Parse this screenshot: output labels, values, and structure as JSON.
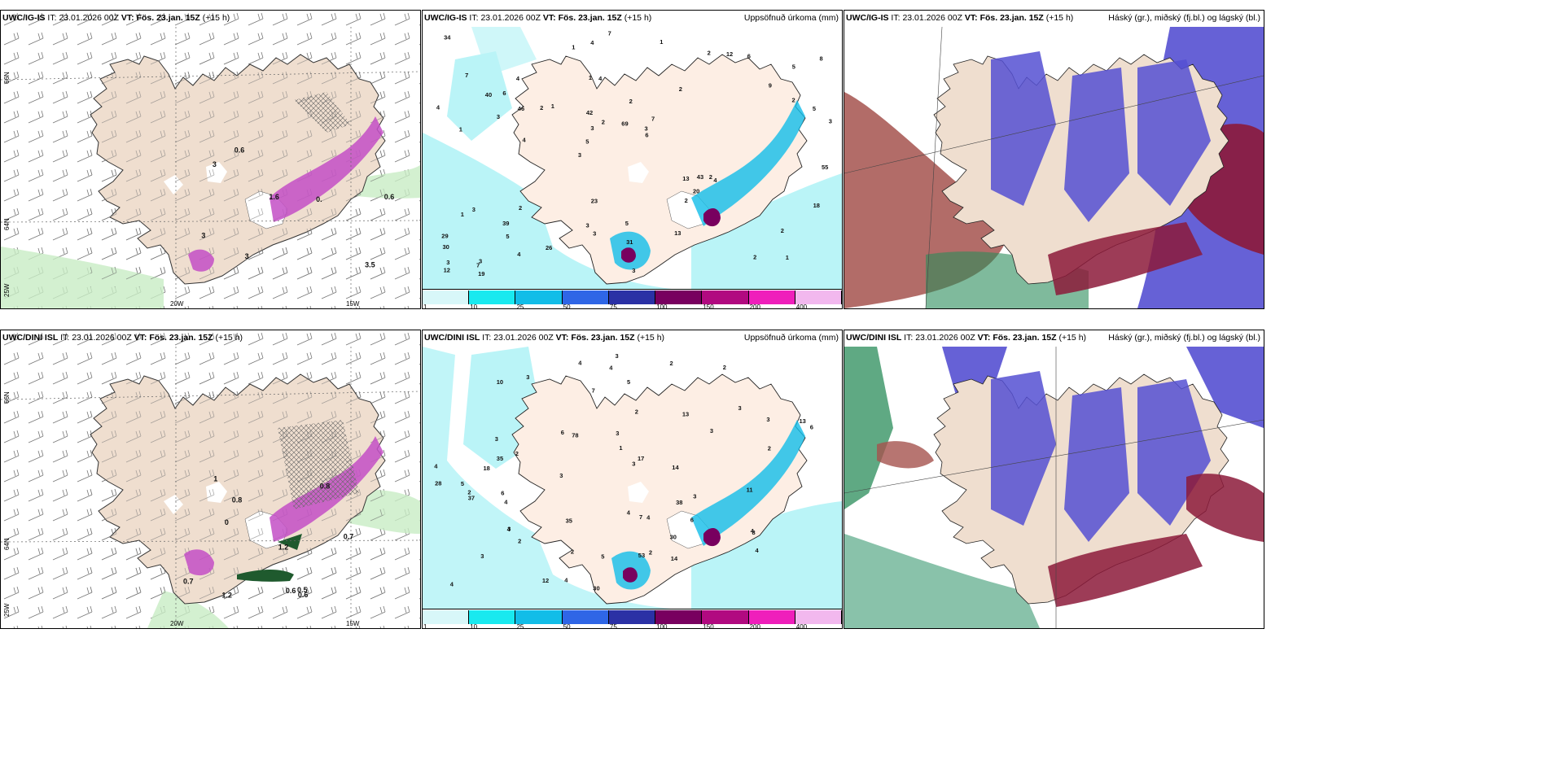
{
  "colorbar": {
    "colors": [
      "#d8f7f9",
      "#19e9ef",
      "#12bde8",
      "#2f66e6",
      "#2b31a5",
      "#78005f",
      "#b10a80",
      "#ef1fbb",
      "#f2b8ee"
    ],
    "ticks": [
      "1",
      "10",
      "25",
      "50",
      "75",
      "100",
      "150",
      "200",
      "400"
    ]
  },
  "colors": {
    "land": "#efdecf",
    "sea": "#ffffff",
    "coast": "#333333",
    "precip_light": "#baf4f7",
    "precip_magenta": "#c34fc6",
    "cloud_high": "#2a8c5a",
    "cloud_mid": "#5550d2",
    "cloud_low": "#8c1a3a"
  },
  "rows": [
    {
      "model": "UWC/IG-IS",
      "it_label": "IT:",
      "it_value": "23.01.2026 00Z",
      "vt_label": "VT:",
      "vt_value": "Fös. 23.jan. 15Z",
      "lead": "(+15 h)",
      "lon_labels": [
        "20W",
        "15W"
      ],
      "lat_labels": [
        "66N",
        "64N",
        "25W"
      ],
      "wind_labels": [
        "0.6",
        "0.6",
        "1.6",
        "3.5",
        "3",
        "3",
        "0.",
        "3"
      ],
      "precip_numbers": [
        "1",
        "1",
        "5",
        "3",
        "2",
        "3",
        "1",
        "2",
        "3",
        "1",
        "30",
        "5",
        "4",
        "7",
        "4",
        "7",
        "4",
        "3",
        "13",
        "2",
        "5",
        "3",
        "3",
        "4",
        "2",
        "2",
        "2",
        "2",
        "2",
        "3",
        "2",
        "3",
        "2",
        "4",
        "5",
        "3",
        "3",
        "3",
        "6",
        "1",
        "9",
        "8",
        "20",
        "13",
        "39",
        "19",
        "12",
        "5",
        "6",
        "7",
        "4",
        "4",
        "6",
        "12",
        "7",
        "1",
        "1",
        "2",
        "18",
        "23",
        "26",
        "43",
        "46",
        "29",
        "34",
        "40",
        "55",
        "42",
        "31",
        "69"
      ],
      "cloud_legend": "Háský (gr.), miðský (fj.bl.) og lágský (bl.)",
      "precip_title": "Uppsöfnuð úrkoma (mm)"
    },
    {
      "model": "UWC/DINI ISL",
      "it_label": "IT:",
      "it_value": "23.01.2026 00Z",
      "vt_label": "VT:",
      "vt_value": "Fös. 23.jan. 15Z",
      "lead": "(+15 h)",
      "lon_labels": [
        "20W",
        "15W"
      ],
      "lat_labels": [
        "66N",
        "64N",
        "25W"
      ],
      "wind_labels": [
        "0.6",
        "0.6",
        "0.7",
        "0.5",
        "0.7",
        "0.8",
        "0.8",
        "1.2",
        "1.2",
        "1",
        "0"
      ],
      "precip_numbers": [
        "3",
        "2",
        "3",
        "3",
        "7",
        "2",
        "4",
        "3",
        "3",
        "3",
        "5",
        "3",
        "6",
        "3",
        "30",
        "4",
        "4",
        "4",
        "4",
        "4",
        "14",
        "4",
        "7",
        "17",
        "1",
        "2",
        "2",
        "2",
        "2",
        "3",
        "3",
        "2",
        "2",
        "4",
        "8",
        "37",
        "13",
        "14",
        "13",
        "11",
        "6",
        "5",
        "5",
        "6",
        "28",
        "35",
        "38",
        "53",
        "35",
        "30",
        "78",
        "12",
        "3",
        "2",
        "3",
        "4",
        "6",
        "4",
        "10",
        "18",
        "4"
      ],
      "cloud_legend": "Háský (gr.), miðský (fj.bl.) og lágský (bl.)",
      "precip_title": "Uppsöfnuð úrkoma (mm)"
    }
  ]
}
